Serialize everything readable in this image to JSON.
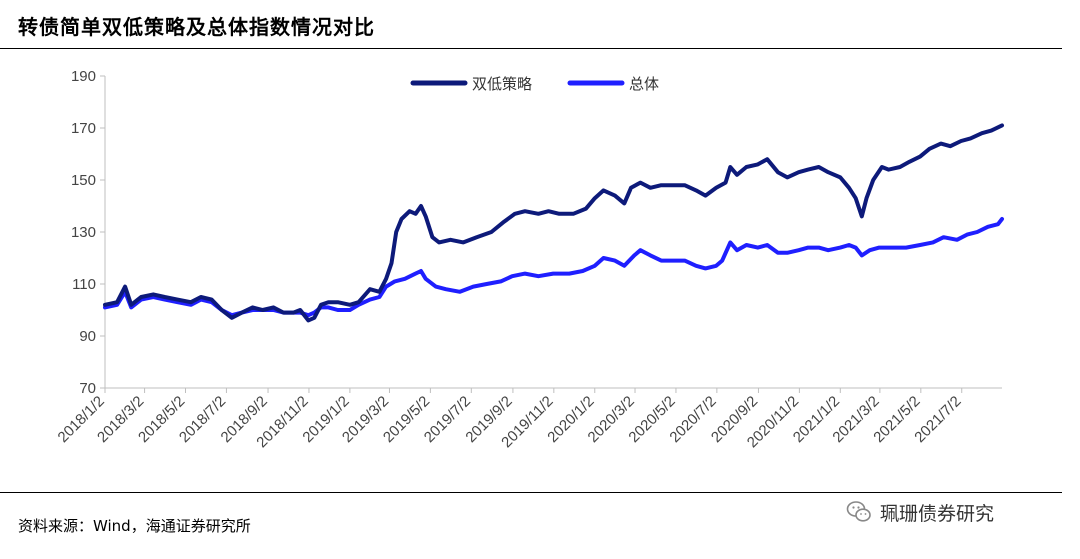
{
  "header": {
    "title": "转债简单双低策略及总体指数情况对比"
  },
  "footer": {
    "source": "资料来源：Wind，海通证券研究所"
  },
  "watermark": {
    "text": "珮珊债券研究",
    "icon": "wechat-icon"
  },
  "colors": {
    "strategy": "#0d1a7a",
    "overall": "#1f1fff",
    "axis": "#bfbfbf"
  },
  "chart_data": {
    "type": "line",
    "title": "转债简单双低策略及总体指数情况对比",
    "xlabel": "",
    "ylabel": "",
    "ylim": [
      70,
      190
    ],
    "yticks": [
      70,
      90,
      110,
      130,
      150,
      170,
      190
    ],
    "grid": false,
    "legend": "top-center",
    "x_tick_labels": [
      "2018/1/2",
      "2018/3/2",
      "2018/5/2",
      "2018/7/2",
      "2018/9/2",
      "2018/11/2",
      "2019/1/2",
      "2019/3/2",
      "2019/5/2",
      "2019/7/2",
      "2019/9/2",
      "2019/11/2",
      "2020/1/2",
      "2020/3/2",
      "2020/5/2",
      "2020/7/2",
      "2020/9/2",
      "2020/11/2",
      "2021/1/2",
      "2021/3/2",
      "2021/5/2",
      "2021/7/2"
    ],
    "x_range": [
      "2018/1/2",
      "2021/8/31"
    ],
    "series": [
      {
        "name": "双低策略",
        "color": "#0d1a7a",
        "points": [
          [
            "2018/1/2",
            102
          ],
          [
            "2018/1/20",
            103
          ],
          [
            "2018/2/1",
            109
          ],
          [
            "2018/2/10",
            102
          ],
          [
            "2018/2/25",
            105
          ],
          [
            "2018/3/15",
            106
          ],
          [
            "2018/4/1",
            105
          ],
          [
            "2018/4/20",
            104
          ],
          [
            "2018/5/10",
            103
          ],
          [
            "2018/5/25",
            105
          ],
          [
            "2018/6/10",
            104
          ],
          [
            "2018/6/25",
            100
          ],
          [
            "2018/7/10",
            97
          ],
          [
            "2018/7/25",
            99
          ],
          [
            "2018/8/10",
            101
          ],
          [
            "2018/8/25",
            100
          ],
          [
            "2018/9/10",
            101
          ],
          [
            "2018/9/25",
            99
          ],
          [
            "2018/10/10",
            99
          ],
          [
            "2018/10/20",
            100
          ],
          [
            "2018/11/1",
            96
          ],
          [
            "2018/11/10",
            97
          ],
          [
            "2018/11/20",
            102
          ],
          [
            "2018/12/1",
            103
          ],
          [
            "2018/12/15",
            103
          ],
          [
            "2019/1/2",
            102
          ],
          [
            "2019/1/15",
            103
          ],
          [
            "2019/2/1",
            108
          ],
          [
            "2019/2/15",
            107
          ],
          [
            "2019/2/25",
            112
          ],
          [
            "2019/3/5",
            118
          ],
          [
            "2019/3/12",
            130
          ],
          [
            "2019/3/20",
            135
          ],
          [
            "2019/4/1",
            138
          ],
          [
            "2019/4/10",
            137
          ],
          [
            "2019/4/18",
            140
          ],
          [
            "2019/4/25",
            136
          ],
          [
            "2019/5/5",
            128
          ],
          [
            "2019/5/15",
            126
          ],
          [
            "2019/6/1",
            127
          ],
          [
            "2019/6/20",
            126
          ],
          [
            "2019/7/10",
            128
          ],
          [
            "2019/8/1",
            130
          ],
          [
            "2019/8/20",
            134
          ],
          [
            "2019/9/5",
            137
          ],
          [
            "2019/9/20",
            138
          ],
          [
            "2019/10/10",
            137
          ],
          [
            "2019/10/25",
            138
          ],
          [
            "2019/11/10",
            137
          ],
          [
            "2019/12/1",
            137
          ],
          [
            "2019/12/20",
            139
          ],
          [
            "2020/1/2",
            143
          ],
          [
            "2020/1/15",
            146
          ],
          [
            "2020/2/1",
            144
          ],
          [
            "2020/2/15",
            141
          ],
          [
            "2020/2/25",
            147
          ],
          [
            "2020/3/10",
            149
          ],
          [
            "2020/3/25",
            147
          ],
          [
            "2020/4/10",
            148
          ],
          [
            "2020/4/25",
            148
          ],
          [
            "2020/5/15",
            148
          ],
          [
            "2020/6/1",
            146
          ],
          [
            "2020/6/15",
            144
          ],
          [
            "2020/7/1",
            147
          ],
          [
            "2020/7/15",
            149
          ],
          [
            "2020/7/22",
            155
          ],
          [
            "2020/8/1",
            152
          ],
          [
            "2020/8/15",
            155
          ],
          [
            "2020/9/1",
            156
          ],
          [
            "2020/9/15",
            158
          ],
          [
            "2020/10/1",
            153
          ],
          [
            "2020/10/15",
            151
          ],
          [
            "2020/11/1",
            153
          ],
          [
            "2020/11/15",
            154
          ],
          [
            "2020/12/1",
            155
          ],
          [
            "2020/12/15",
            153
          ],
          [
            "2021/1/2",
            151
          ],
          [
            "2021/1/15",
            147
          ],
          [
            "2021/1/25",
            143
          ],
          [
            "2021/2/3",
            136
          ],
          [
            "2021/2/10",
            143
          ],
          [
            "2021/2/20",
            150
          ],
          [
            "2021/3/5",
            155
          ],
          [
            "2021/3/15",
            154
          ],
          [
            "2021/4/1",
            155
          ],
          [
            "2021/4/15",
            157
          ],
          [
            "2021/5/1",
            159
          ],
          [
            "2021/5/15",
            162
          ],
          [
            "2021/6/1",
            164
          ],
          [
            "2021/6/15",
            163
          ],
          [
            "2021/7/1",
            165
          ],
          [
            "2021/7/15",
            166
          ],
          [
            "2021/8/1",
            168
          ],
          [
            "2021/8/15",
            169
          ],
          [
            "2021/8/31",
            171
          ]
        ]
      },
      {
        "name": "总体",
        "color": "#1f1fff",
        "points": [
          [
            "2018/1/2",
            101
          ],
          [
            "2018/1/20",
            102
          ],
          [
            "2018/2/1",
            107
          ],
          [
            "2018/2/10",
            101
          ],
          [
            "2018/2/25",
            104
          ],
          [
            "2018/3/15",
            105
          ],
          [
            "2018/4/1",
            104
          ],
          [
            "2018/4/20",
            103
          ],
          [
            "2018/5/10",
            102
          ],
          [
            "2018/5/25",
            104
          ],
          [
            "2018/6/10",
            103
          ],
          [
            "2018/6/25",
            100
          ],
          [
            "2018/7/10",
            98
          ],
          [
            "2018/7/25",
            99
          ],
          [
            "2018/8/10",
            100
          ],
          [
            "2018/8/25",
            100
          ],
          [
            "2018/9/10",
            100
          ],
          [
            "2018/9/25",
            99
          ],
          [
            "2018/10/10",
            99
          ],
          [
            "2018/10/20",
            99
          ],
          [
            "2018/11/1",
            98
          ],
          [
            "2018/11/10",
            99
          ],
          [
            "2018/11/20",
            101
          ],
          [
            "2018/12/1",
            101
          ],
          [
            "2018/12/15",
            100
          ],
          [
            "2019/1/2",
            100
          ],
          [
            "2019/1/15",
            102
          ],
          [
            "2019/2/1",
            104
          ],
          [
            "2019/2/15",
            105
          ],
          [
            "2019/2/25",
            109
          ],
          [
            "2019/3/10",
            111
          ],
          [
            "2019/3/25",
            112
          ],
          [
            "2019/4/10",
            114
          ],
          [
            "2019/4/18",
            115
          ],
          [
            "2019/4/25",
            112
          ],
          [
            "2019/5/10",
            109
          ],
          [
            "2019/5/25",
            108
          ],
          [
            "2019/6/15",
            107
          ],
          [
            "2019/7/5",
            109
          ],
          [
            "2019/7/25",
            110
          ],
          [
            "2019/8/15",
            111
          ],
          [
            "2019/9/1",
            113
          ],
          [
            "2019/9/20",
            114
          ],
          [
            "2019/10/10",
            113
          ],
          [
            "2019/11/1",
            114
          ],
          [
            "2019/11/25",
            114
          ],
          [
            "2019/12/15",
            115
          ],
          [
            "2020/1/2",
            117
          ],
          [
            "2020/1/15",
            120
          ],
          [
            "2020/2/1",
            119
          ],
          [
            "2020/2/15",
            117
          ],
          [
            "2020/3/1",
            121
          ],
          [
            "2020/3/10",
            123
          ],
          [
            "2020/3/25",
            121
          ],
          [
            "2020/4/10",
            119
          ],
          [
            "2020/4/25",
            119
          ],
          [
            "2020/5/15",
            119
          ],
          [
            "2020/6/1",
            117
          ],
          [
            "2020/6/15",
            116
          ],
          [
            "2020/7/1",
            117
          ],
          [
            "2020/7/10",
            119
          ],
          [
            "2020/7/22",
            126
          ],
          [
            "2020/8/1",
            123
          ],
          [
            "2020/8/15",
            125
          ],
          [
            "2020/9/1",
            124
          ],
          [
            "2020/9/15",
            125
          ],
          [
            "2020/10/1",
            122
          ],
          [
            "2020/10/15",
            122
          ],
          [
            "2020/11/1",
            123
          ],
          [
            "2020/11/15",
            124
          ],
          [
            "2020/12/1",
            124
          ],
          [
            "2020/12/15",
            123
          ],
          [
            "2021/1/2",
            124
          ],
          [
            "2021/1/15",
            125
          ],
          [
            "2021/1/25",
            124
          ],
          [
            "2021/2/3",
            121
          ],
          [
            "2021/2/15",
            123
          ],
          [
            "2021/3/1",
            124
          ],
          [
            "2021/3/20",
            124
          ],
          [
            "2021/4/10",
            124
          ],
          [
            "2021/5/1",
            125
          ],
          [
            "2021/5/20",
            126
          ],
          [
            "2021/6/5",
            128
          ],
          [
            "2021/6/25",
            127
          ],
          [
            "2021/7/10",
            129
          ],
          [
            "2021/7/25",
            130
          ],
          [
            "2021/8/10",
            132
          ],
          [
            "2021/8/25",
            133
          ],
          [
            "2021/8/31",
            135
          ]
        ]
      }
    ]
  }
}
